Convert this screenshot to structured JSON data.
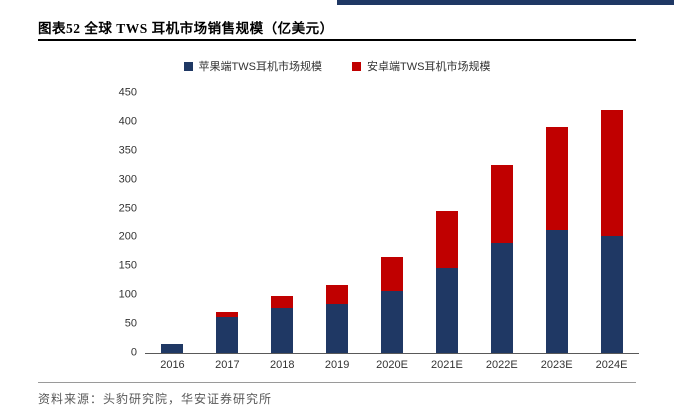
{
  "header": {
    "title": "图表52 全球 TWS 耳机市场销售规模（亿美元）"
  },
  "footer": {
    "source": "资料来源：头豹研究院，华安证券研究所"
  },
  "colors": {
    "apple_series": "#1f3864",
    "android_series": "#c00000",
    "top_bar": "#1f3864",
    "axis": "#595959"
  },
  "chart_data": {
    "type": "bar",
    "stacked": true,
    "title": "全球 TWS 耳机市场销售规模（亿美元）",
    "categories": [
      "2016",
      "2017",
      "2018",
      "2019",
      "2020E",
      "2021E",
      "2022E",
      "2023E",
      "2024E"
    ],
    "series": [
      {
        "name": "苹果端TWS耳机市场规模",
        "color": "#1f3864",
        "values": [
          15,
          62,
          78,
          85,
          107,
          148,
          190,
          213,
          203
        ]
      },
      {
        "name": "安卓端TWS耳机市场规模",
        "color": "#c00000",
        "values": [
          0,
          9,
          20,
          33,
          60,
          97,
          135,
          179,
          217
        ]
      }
    ],
    "xlabel": "",
    "ylabel": "",
    "ylim": [
      0,
      450
    ],
    "ytick_step": 50,
    "grid": false,
    "legend_position": "top"
  }
}
